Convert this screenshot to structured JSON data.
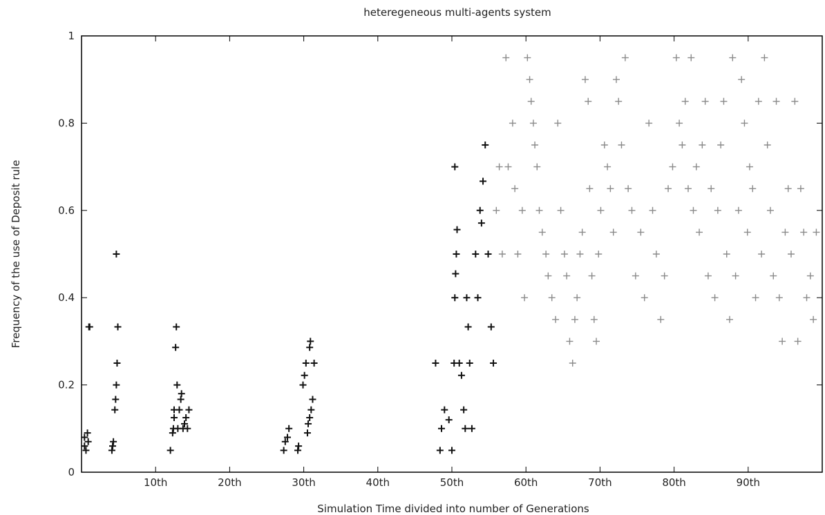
{
  "chart_data": {
    "type": "scatter",
    "title": "heteregeneous multi-agents system",
    "xlabel": "Simulation Time divided into number of Generations",
    "ylabel": "Frequency of the use of Deposit rule",
    "xlim": [
      0,
      100
    ],
    "ylim": [
      0,
      1
    ],
    "x_ticks": [
      {
        "value": 10,
        "label": "10th"
      },
      {
        "value": 20,
        "label": "20th"
      },
      {
        "value": 30,
        "label": "30th"
      },
      {
        "value": 40,
        "label": "40th"
      },
      {
        "value": 50,
        "label": "50th"
      },
      {
        "value": 60,
        "label": "60th"
      },
      {
        "value": 70,
        "label": "70th"
      },
      {
        "value": 80,
        "label": "80th"
      },
      {
        "value": 90,
        "label": "90th"
      }
    ],
    "y_ticks": [
      {
        "value": 0,
        "label": "0"
      },
      {
        "value": 0.2,
        "label": "0.2"
      },
      {
        "value": 0.4,
        "label": "0.4"
      },
      {
        "value": 0.6,
        "label": "0.6"
      },
      {
        "value": 0.8,
        "label": "0.8"
      },
      {
        "value": 1,
        "label": "1"
      }
    ],
    "grid": false,
    "legend": "none",
    "marker": "plus",
    "colors": {
      "dark": "#111111",
      "light": "#8a8a8a",
      "axis": "#000000"
    },
    "series": [
      {
        "values": [
          [
            0.4,
            0.08
          ],
          [
            0.4,
            0.06
          ],
          [
            0.6,
            0.05
          ],
          [
            0.8,
            0.09
          ],
          [
            0.9,
            0.07
          ],
          [
            1.0,
            0.333
          ],
          [
            1.1,
            0.333
          ],
          [
            4.1,
            0.05
          ],
          [
            4.2,
            0.06
          ],
          [
            4.3,
            0.07
          ],
          [
            4.5,
            0.143
          ],
          [
            4.6,
            0.167
          ],
          [
            4.7,
            0.2
          ],
          [
            4.8,
            0.25
          ],
          [
            4.9,
            0.333
          ],
          [
            4.7,
            0.5
          ],
          [
            12.0,
            0.05
          ],
          [
            12.3,
            0.09
          ],
          [
            12.4,
            0.1
          ],
          [
            12.5,
            0.125
          ],
          [
            12.5,
            0.143
          ],
          [
            12.7,
            0.286
          ],
          [
            12.8,
            0.333
          ],
          [
            12.9,
            0.2
          ],
          [
            13.0,
            0.1
          ],
          [
            13.2,
            0.143
          ],
          [
            13.4,
            0.167
          ],
          [
            13.5,
            0.18
          ],
          [
            13.7,
            0.1
          ],
          [
            13.9,
            0.111
          ],
          [
            14.1,
            0.125
          ],
          [
            14.3,
            0.1
          ],
          [
            14.5,
            0.143
          ],
          [
            27.3,
            0.05
          ],
          [
            27.5,
            0.07
          ],
          [
            27.8,
            0.08
          ],
          [
            28.0,
            0.1
          ],
          [
            29.2,
            0.05
          ],
          [
            29.3,
            0.06
          ],
          [
            29.9,
            0.2
          ],
          [
            30.1,
            0.222
          ],
          [
            30.3,
            0.25
          ],
          [
            30.5,
            0.09
          ],
          [
            30.6,
            0.111
          ],
          [
            30.8,
            0.125
          ],
          [
            31.0,
            0.143
          ],
          [
            31.2,
            0.167
          ],
          [
            31.4,
            0.25
          ],
          [
            30.8,
            0.286
          ],
          [
            30.9,
            0.3
          ],
          [
            47.8,
            0.25
          ],
          [
            48.4,
            0.05
          ],
          [
            48.6,
            0.1
          ],
          [
            49.0,
            0.143
          ],
          [
            49.6,
            0.12
          ],
          [
            50.0,
            0.05
          ],
          [
            50.3,
            0.25
          ],
          [
            50.4,
            0.4
          ],
          [
            50.5,
            0.455
          ],
          [
            50.6,
            0.5
          ],
          [
            50.7,
            0.556
          ],
          [
            50.4,
            0.7
          ],
          [
            51.0,
            0.25
          ],
          [
            51.3,
            0.222
          ],
          [
            51.6,
            0.143
          ],
          [
            51.8,
            0.1
          ],
          [
            52.0,
            0.4
          ],
          [
            52.2,
            0.333
          ],
          [
            52.4,
            0.25
          ],
          [
            52.7,
            0.1
          ],
          [
            53.2,
            0.5
          ],
          [
            53.5,
            0.4
          ],
          [
            53.8,
            0.6
          ],
          [
            54.0,
            0.571
          ],
          [
            54.2,
            0.667
          ],
          [
            54.5,
            0.75
          ],
          [
            54.9,
            0.5
          ],
          [
            55.3,
            0.333
          ],
          [
            55.6,
            0.25
          ]
        ]
      },
      {
        "values": [
          [
            56.0,
            0.6
          ],
          [
            56.4,
            0.7
          ],
          [
            56.8,
            0.5
          ],
          [
            57.3,
            0.95
          ],
          [
            57.6,
            0.7
          ],
          [
            58.2,
            0.8
          ],
          [
            58.5,
            0.65
          ],
          [
            58.9,
            0.5
          ],
          [
            59.5,
            0.6
          ],
          [
            59.8,
            0.4
          ],
          [
            60.2,
            0.95
          ],
          [
            60.5,
            0.9
          ],
          [
            60.7,
            0.85
          ],
          [
            61.0,
            0.8
          ],
          [
            61.2,
            0.75
          ],
          [
            61.5,
            0.7
          ],
          [
            61.8,
            0.6
          ],
          [
            62.2,
            0.55
          ],
          [
            62.7,
            0.5
          ],
          [
            63.0,
            0.45
          ],
          [
            63.5,
            0.4
          ],
          [
            64.0,
            0.35
          ],
          [
            64.3,
            0.8
          ],
          [
            64.7,
            0.6
          ],
          [
            65.2,
            0.5
          ],
          [
            65.5,
            0.45
          ],
          [
            65.9,
            0.3
          ],
          [
            66.3,
            0.25
          ],
          [
            66.6,
            0.35
          ],
          [
            66.9,
            0.4
          ],
          [
            67.3,
            0.5
          ],
          [
            67.6,
            0.55
          ],
          [
            68.0,
            0.9
          ],
          [
            68.4,
            0.85
          ],
          [
            68.6,
            0.65
          ],
          [
            68.9,
            0.45
          ],
          [
            69.2,
            0.35
          ],
          [
            69.5,
            0.3
          ],
          [
            69.8,
            0.5
          ],
          [
            70.1,
            0.6
          ],
          [
            70.6,
            0.75
          ],
          [
            71.0,
            0.7
          ],
          [
            71.4,
            0.65
          ],
          [
            71.8,
            0.55
          ],
          [
            72.2,
            0.9
          ],
          [
            72.5,
            0.85
          ],
          [
            72.9,
            0.75
          ],
          [
            73.4,
            0.95
          ],
          [
            73.8,
            0.65
          ],
          [
            74.3,
            0.6
          ],
          [
            74.8,
            0.45
          ],
          [
            75.5,
            0.55
          ],
          [
            76.0,
            0.4
          ],
          [
            76.6,
            0.8
          ],
          [
            77.1,
            0.6
          ],
          [
            77.6,
            0.5
          ],
          [
            78.2,
            0.35
          ],
          [
            78.7,
            0.45
          ],
          [
            79.2,
            0.65
          ],
          [
            79.8,
            0.7
          ],
          [
            80.3,
            0.95
          ],
          [
            80.7,
            0.8
          ],
          [
            81.1,
            0.75
          ],
          [
            81.5,
            0.85
          ],
          [
            81.9,
            0.65
          ],
          [
            82.3,
            0.95
          ],
          [
            82.6,
            0.6
          ],
          [
            83.0,
            0.7
          ],
          [
            83.4,
            0.55
          ],
          [
            83.8,
            0.75
          ],
          [
            84.2,
            0.85
          ],
          [
            84.6,
            0.45
          ],
          [
            85.0,
            0.65
          ],
          [
            85.5,
            0.4
          ],
          [
            85.9,
            0.6
          ],
          [
            86.3,
            0.75
          ],
          [
            86.7,
            0.85
          ],
          [
            87.1,
            0.5
          ],
          [
            87.5,
            0.35
          ],
          [
            87.9,
            0.95
          ],
          [
            88.3,
            0.45
          ],
          [
            88.7,
            0.6
          ],
          [
            89.1,
            0.9
          ],
          [
            89.5,
            0.8
          ],
          [
            89.9,
            0.55
          ],
          [
            90.2,
            0.7
          ],
          [
            90.6,
            0.65
          ],
          [
            91.0,
            0.4
          ],
          [
            91.4,
            0.85
          ],
          [
            91.8,
            0.5
          ],
          [
            92.2,
            0.95
          ],
          [
            92.6,
            0.75
          ],
          [
            93.0,
            0.6
          ],
          [
            93.4,
            0.45
          ],
          [
            93.8,
            0.85
          ],
          [
            94.2,
            0.4
          ],
          [
            94.6,
            0.3
          ],
          [
            95.0,
            0.55
          ],
          [
            95.4,
            0.65
          ],
          [
            95.8,
            0.5
          ],
          [
            96.3,
            0.85
          ],
          [
            96.7,
            0.3
          ],
          [
            97.1,
            0.65
          ],
          [
            97.5,
            0.55
          ],
          [
            97.9,
            0.4
          ],
          [
            98.4,
            0.45
          ],
          [
            98.8,
            0.35
          ],
          [
            99.2,
            0.55
          ]
        ]
      }
    ]
  }
}
